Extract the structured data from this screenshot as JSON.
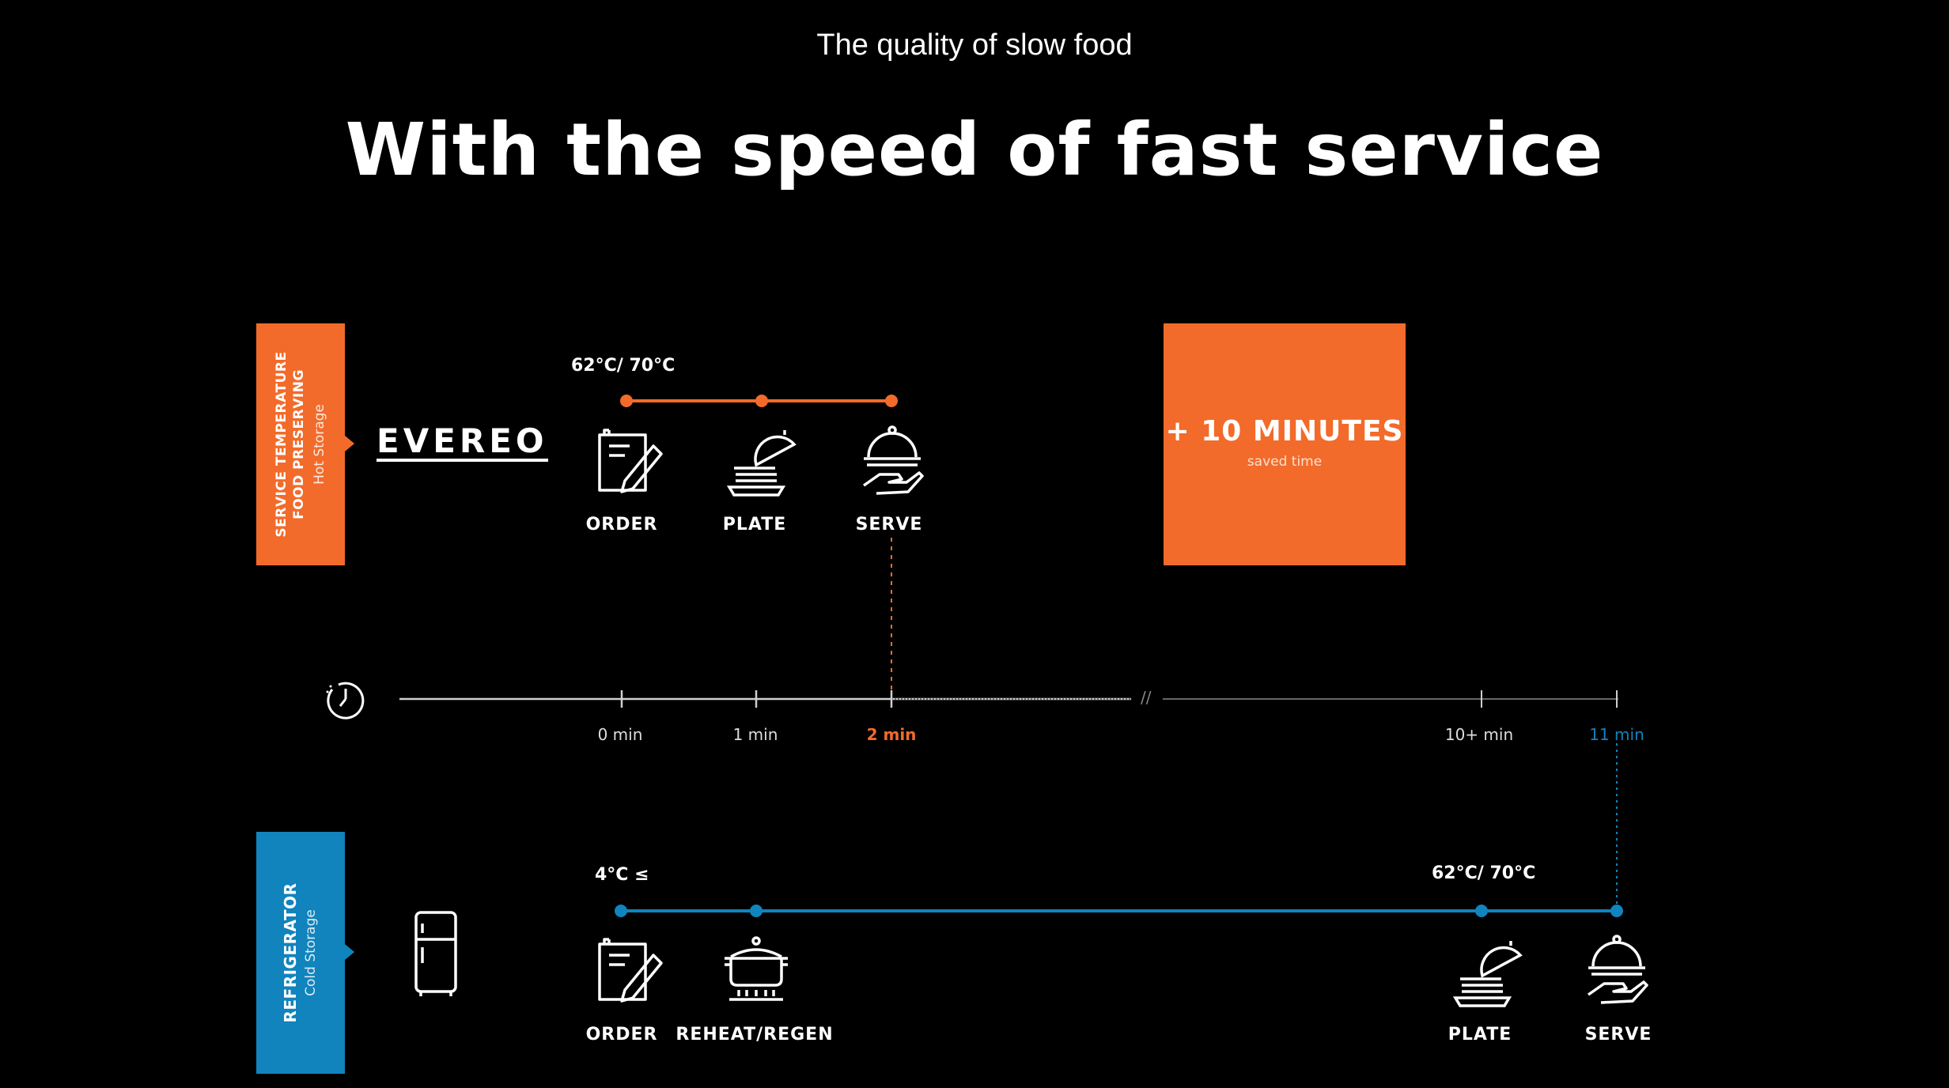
{
  "header": {
    "subtitle": "The quality of slow food",
    "headline": "With the speed of fast service"
  },
  "colors": {
    "accent_orange": "#f26b2a",
    "accent_blue": "#1183bd",
    "background": "#000000",
    "text": "#ffffff"
  },
  "top_row": {
    "tab_line1": "SERVICE TEMPERATURE",
    "tab_line2": "FOOD PRESERVING",
    "tab_line3": "Hot Storage",
    "logo_text": "EVEREO",
    "temperature": "62°C/ 70°C",
    "steps": [
      {
        "label": "ORDER",
        "icon": "order-pencil-icon"
      },
      {
        "label": "PLATE",
        "icon": "plate-cloche-icon"
      },
      {
        "label": "SERVE",
        "icon": "serve-cloche-hand-icon"
      }
    ]
  },
  "savings": {
    "headline": "+ 10 MINUTES",
    "caption": "saved time"
  },
  "timeline": {
    "icon": "clock-icon",
    "break_mark": "//",
    "ticks": [
      {
        "label": "0 min",
        "minute": 0
      },
      {
        "label": "1 min",
        "minute": 1
      },
      {
        "label": "2 min",
        "minute": 2
      },
      {
        "label": "10+ min",
        "minute": 10
      },
      {
        "label": "11 min",
        "minute": 11
      }
    ]
  },
  "bottom_row": {
    "tab_line1": "REFRIGERATOR",
    "tab_line2": "Cold Storage",
    "icon": "refrigerator-icon",
    "temperature_start": "4°C ≤",
    "temperature_end": "62°C/ 70°C",
    "steps": [
      {
        "label": "ORDER",
        "icon": "order-pencil-icon"
      },
      {
        "label": "REHEAT/REGEN",
        "icon": "pot-heat-icon"
      },
      {
        "label": "PLATE",
        "icon": "plate-cloche-icon"
      },
      {
        "label": "SERVE",
        "icon": "serve-cloche-hand-icon"
      }
    ]
  }
}
